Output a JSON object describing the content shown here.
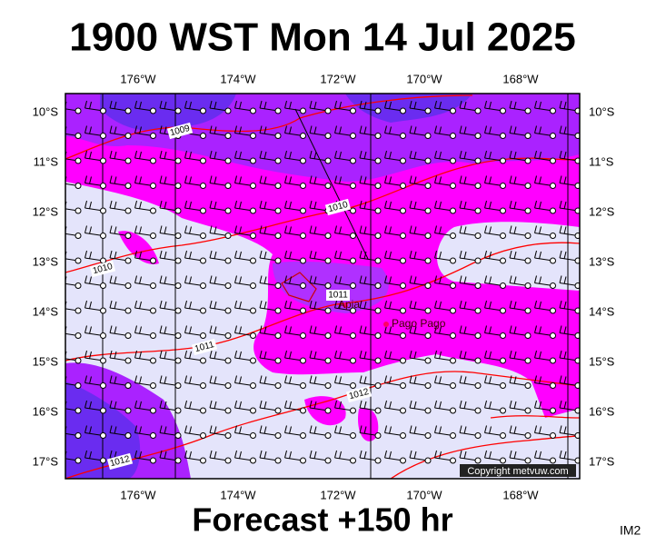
{
  "header": {
    "title": "1900 WST Mon 14 Jul 2025"
  },
  "map": {
    "lon_labels": [
      "176°W",
      "174°W",
      "172°W",
      "170°W",
      "168°W"
    ],
    "lat_labels": [
      "10°S",
      "11°S",
      "12°S",
      "13°S",
      "14°S",
      "15°S",
      "16°S",
      "17°S"
    ],
    "isobar_labels": [
      "1009",
      "1010",
      "1010",
      "1011",
      "1011",
      "1012",
      "1012"
    ],
    "places": [
      "Apia",
      "Pago Pago"
    ],
    "copyright": "Copyright metvuw.com"
  },
  "footer": {
    "forecast": "Forecast +150 hr",
    "code": "IM2"
  }
}
